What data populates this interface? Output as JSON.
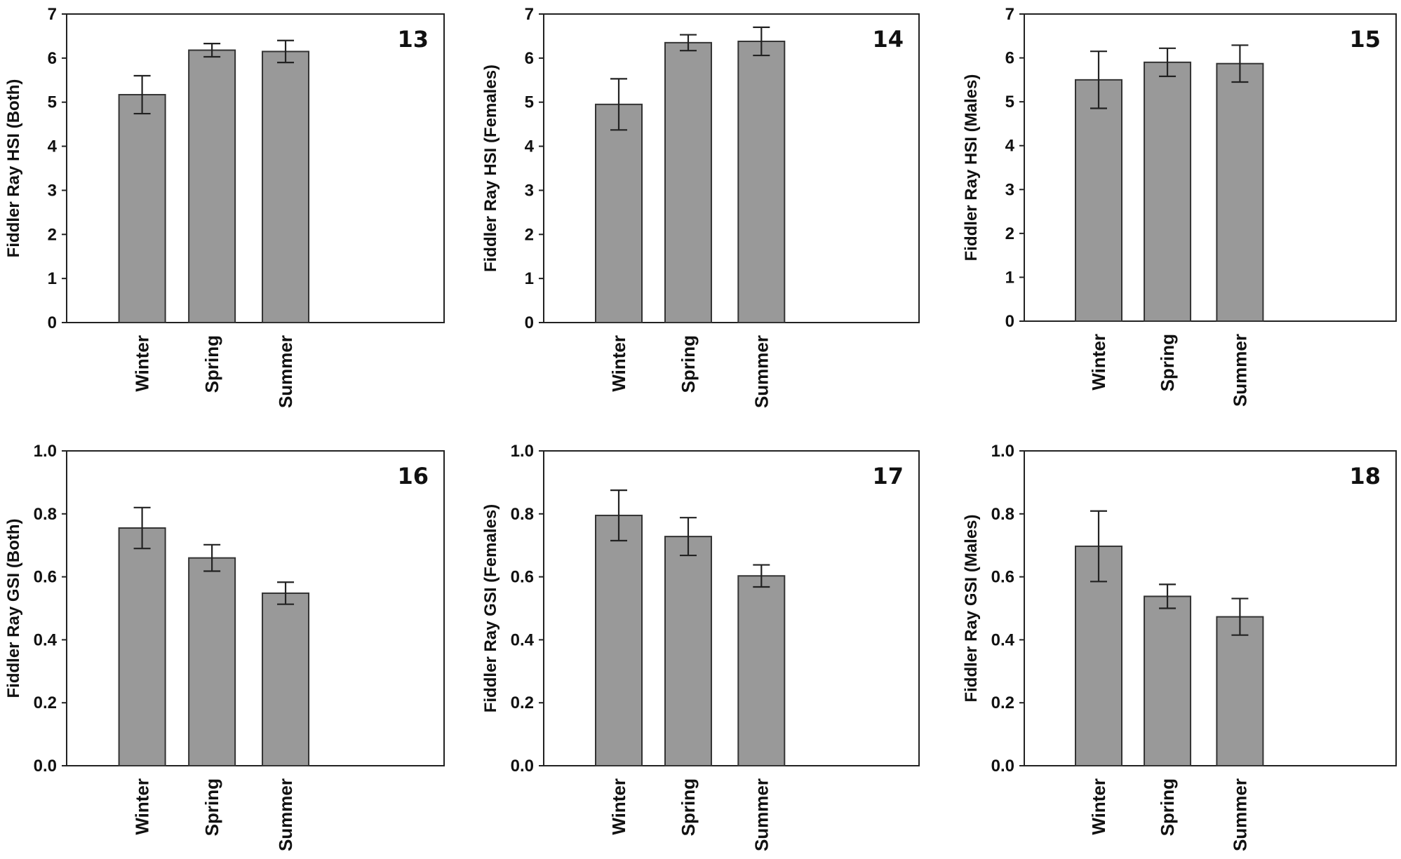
{
  "chart_data": [
    {
      "type": "bar",
      "panel_label": "13",
      "categories": [
        "Winter",
        "Spring",
        "Summer"
      ],
      "values": [
        5.17,
        6.18,
        6.15
      ],
      "error": [
        0.43,
        0.15,
        0.25
      ],
      "ylabel": "Fiddler Ray HSI (Both)",
      "ylim": [
        0,
        7
      ],
      "yticks": [
        "0",
        "1",
        "2",
        "3",
        "4",
        "5",
        "6",
        "7"
      ],
      "bar_color": "#999999"
    },
    {
      "type": "bar",
      "panel_label": "14",
      "categories": [
        "Winter",
        "Spring",
        "Summer"
      ],
      "values": [
        4.95,
        6.35,
        6.38
      ],
      "error": [
        0.58,
        0.18,
        0.32
      ],
      "ylabel": "Fiddler Ray HSI (Females)",
      "ylim": [
        0,
        7
      ],
      "yticks": [
        "0",
        "1",
        "2",
        "3",
        "4",
        "5",
        "6",
        "7"
      ],
      "bar_color": "#999999"
    },
    {
      "type": "bar",
      "panel_label": "15",
      "categories": [
        "Winter",
        "Spring",
        "Summer"
      ],
      "values": [
        5.5,
        5.9,
        5.87
      ],
      "error": [
        0.65,
        0.32,
        0.42
      ],
      "ylabel": "Fiddler Ray HSI (Males)",
      "ylim": [
        0,
        7
      ],
      "yticks": [
        "0",
        "1",
        "2",
        "3",
        "4",
        "5",
        "6",
        "7"
      ],
      "bar_color": "#999999"
    },
    {
      "type": "bar",
      "panel_label": "16",
      "categories": [
        "Winter",
        "Spring",
        "Summer"
      ],
      "values": [
        0.755,
        0.66,
        0.548
      ],
      "error": [
        0.065,
        0.042,
        0.035
      ],
      "ylabel": "Fiddler Ray GSI (Both)",
      "ylim": [
        0,
        1.0
      ],
      "yticks": [
        "0.0",
        "0.2",
        "0.4",
        "0.6",
        "0.8",
        "1.0"
      ],
      "bar_color": "#999999"
    },
    {
      "type": "bar",
      "panel_label": "17",
      "categories": [
        "Winter",
        "Spring",
        "Summer"
      ],
      "values": [
        0.795,
        0.728,
        0.603
      ],
      "error": [
        0.08,
        0.06,
        0.035
      ],
      "ylabel": "Fiddler Ray GSI (Females)",
      "ylim": [
        0,
        1.0
      ],
      "yticks": [
        "0.0",
        "0.2",
        "0.4",
        "0.6",
        "0.8",
        "1.0"
      ],
      "bar_color": "#999999"
    },
    {
      "type": "bar",
      "panel_label": "18",
      "categories": [
        "Winter",
        "Spring",
        "Summer"
      ],
      "values": [
        0.697,
        0.538,
        0.473
      ],
      "error": [
        0.112,
        0.038,
        0.058
      ],
      "ylabel": "Fiddler Ray GSI (Males)",
      "ylim": [
        0,
        1.0
      ],
      "yticks": [
        "0.0",
        "0.2",
        "0.4",
        "0.6",
        "0.8",
        "1.0"
      ],
      "bar_color": "#999999"
    }
  ]
}
